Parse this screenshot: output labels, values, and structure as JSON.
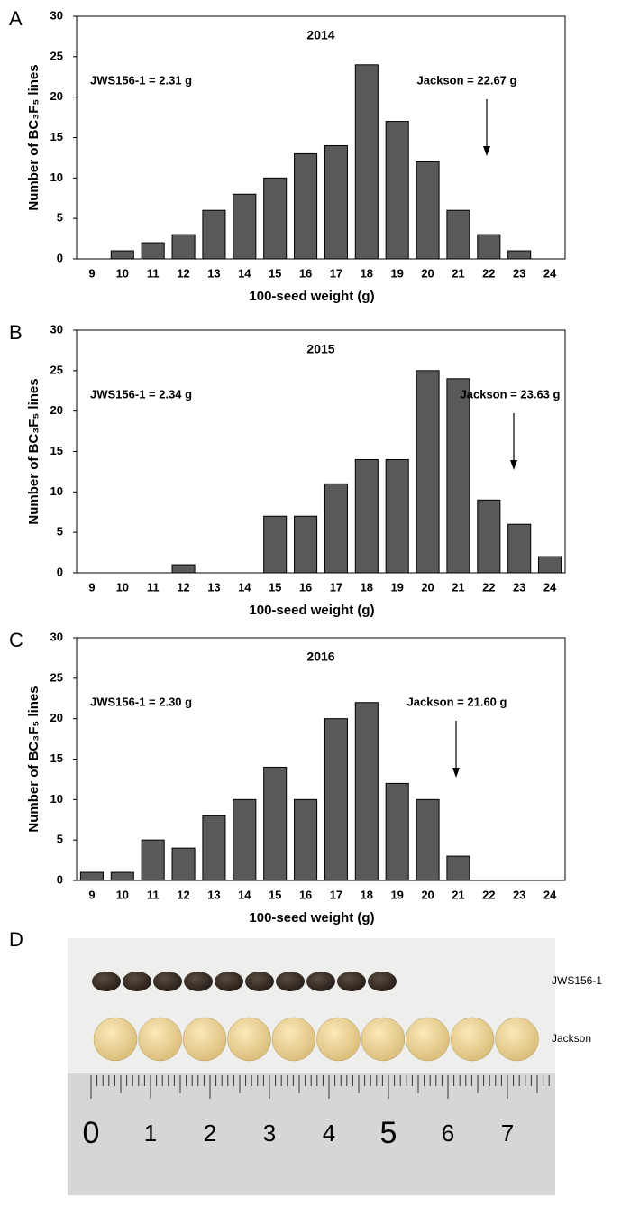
{
  "chart_data": [
    {
      "type": "bar",
      "panel": "A",
      "title": "2014",
      "x_label": "100-seed weight (g)",
      "y_label": "Number of BC₃F₅ lines",
      "categories": [
        "9",
        "10",
        "11",
        "12",
        "13",
        "14",
        "15",
        "16",
        "17",
        "18",
        "19",
        "20",
        "21",
        "22",
        "23",
        "24"
      ],
      "values": [
        0,
        1,
        2,
        3,
        6,
        8,
        10,
        13,
        14,
        24,
        17,
        12,
        6,
        3,
        1,
        0
      ],
      "color": "#595959",
      "ylim": [
        0,
        30
      ],
      "yticks": [
        0,
        5,
        10,
        15,
        20,
        25,
        30
      ],
      "annotations": [
        "JWS156-1 = 2.31 g",
        "Jackson = 22.67 g"
      ]
    },
    {
      "type": "bar",
      "panel": "B",
      "title": "2015",
      "x_label": "100-seed weight (g)",
      "y_label": "Number of BC₃F₅ lines",
      "categories": [
        "9",
        "10",
        "11",
        "12",
        "13",
        "14",
        "15",
        "16",
        "17",
        "18",
        "19",
        "20",
        "21",
        "22",
        "23",
        "24"
      ],
      "values": [
        0,
        0,
        0,
        1,
        0,
        0,
        7,
        7,
        11,
        14,
        14,
        25,
        24,
        9,
        6,
        2
      ],
      "color": "#595959",
      "ylim": [
        0,
        30
      ],
      "yticks": [
        0,
        5,
        10,
        15,
        20,
        25,
        30
      ],
      "annotations": [
        "JWS156-1 = 2.34 g",
        "Jackson = 23.63 g"
      ]
    },
    {
      "type": "bar",
      "panel": "C",
      "title": "2016",
      "x_label": "100-seed weight (g)",
      "y_label": "Number of BC₃F₅ lines",
      "categories": [
        "9",
        "10",
        "11",
        "12",
        "13",
        "14",
        "15",
        "16",
        "17",
        "18",
        "19",
        "20",
        "21",
        "22",
        "23",
        "24"
      ],
      "values": [
        1,
        1,
        5,
        4,
        8,
        10,
        14,
        10,
        20,
        22,
        12,
        10,
        3,
        0,
        0,
        0
      ],
      "color": "#595959",
      "ylim": [
        0,
        30
      ],
      "yticks": [
        0,
        5,
        10,
        15,
        20,
        25,
        30
      ],
      "annotations": [
        "JWS156-1 = 2.30 g",
        "Jackson = 21.60 g"
      ]
    }
  ],
  "photo": {
    "panel": "D",
    "labels": [
      "JWS156-1",
      "Jackson"
    ],
    "ruler_numbers": [
      0,
      1,
      2,
      3,
      4,
      5,
      6,
      7
    ]
  }
}
